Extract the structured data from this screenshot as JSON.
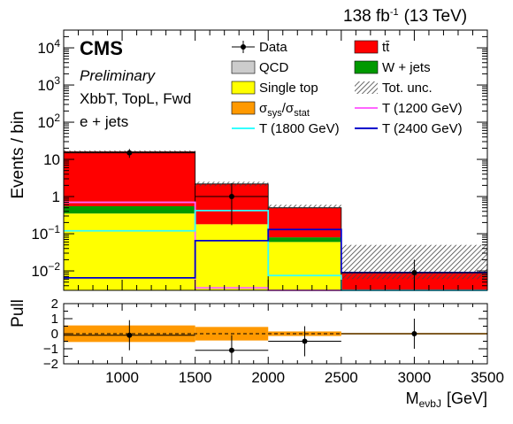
{
  "header": {
    "lumi": "138 fb",
    "lumi_sup": "-1",
    "energy": "(13 TeV)"
  },
  "labels": {
    "experiment": "CMS",
    "status": "Preliminary",
    "category": "XbbT, TopL, Fwd",
    "channel": "e + jets"
  },
  "legend": [
    {
      "key": "data",
      "label": "Data",
      "kind": "point",
      "color": "#000000"
    },
    {
      "key": "ttbar",
      "label": "tt̄",
      "kind": "box",
      "color": "#ff0000"
    },
    {
      "key": "qcd",
      "label": "QCD",
      "kind": "box",
      "color": "#cccccc"
    },
    {
      "key": "wjets",
      "label": "W + jets",
      "kind": "box",
      "color": "#009900"
    },
    {
      "key": "singletop",
      "label": "Single top",
      "kind": "box",
      "color": "#ffff00"
    },
    {
      "key": "totunc",
      "label": "Tot. unc.",
      "kind": "hatch",
      "color": "#555555"
    },
    {
      "key": "sysstat",
      "label": "σsys/σstat",
      "kind": "box",
      "color": "#ff9900"
    },
    {
      "key": "t1200",
      "label": "T (1200 GeV)",
      "kind": "line",
      "color": "#ff66ff"
    },
    {
      "key": "t1800",
      "label": "T (1800 GeV)",
      "kind": "line",
      "color": "#33ffff"
    },
    {
      "key": "t2400",
      "label": "T (2400 GeV)",
      "kind": "line",
      "color": "#0000cc"
    }
  ],
  "chart_data": {
    "type": "bar",
    "stacked": true,
    "log_y": true,
    "ylabel": "Events / bin",
    "xlabel": "M",
    "xlabel_sub": "eνbJ",
    "xlabel_unit": "[GeV]",
    "xlim": [
      600,
      3500
    ],
    "ylim": [
      0.003,
      30000
    ],
    "bin_edges": [
      600,
      1500,
      2000,
      2500,
      3500
    ],
    "x_ticks": [
      1000,
      1500,
      2000,
      2500,
      3000,
      3500
    ],
    "y_ticks": [
      {
        "value": 10000,
        "base": "10",
        "exp": "4"
      },
      {
        "value": 1000,
        "base": "10",
        "exp": "3"
      },
      {
        "value": 100,
        "base": "10",
        "exp": "2"
      },
      {
        "value": 10,
        "base": "10",
        "exp": ""
      },
      {
        "value": 1,
        "base": "1",
        "exp": ""
      },
      {
        "value": 0.1,
        "base": "10",
        "exp": "−1"
      },
      {
        "value": 0.01,
        "base": "10",
        "exp": "−2"
      }
    ],
    "stack": [
      {
        "name": "Single top",
        "color": "#ffff00",
        "values": [
          0.35,
          0.18,
          0.06,
          0.0
        ]
      },
      {
        "name": "W + jets",
        "color": "#009900",
        "values": [
          0.2,
          0.0,
          0.02,
          0.0
        ]
      },
      {
        "name": "QCD",
        "color": "#cccccc",
        "values": [
          0.0,
          0.0,
          0.0,
          0.0
        ]
      },
      {
        "name": "tt̄",
        "color": "#ff0000",
        "values": [
          15.5,
          2.0,
          0.42,
          0.009
        ]
      }
    ],
    "total_uncertainty": {
      "low": [
        14.8,
        1.9,
        0.47,
        0.006
      ],
      "high": [
        17.3,
        2.5,
        0.6,
        0.05
      ]
    },
    "signals": [
      {
        "name": "T (1200 GeV)",
        "color": "#ff66ff",
        "values": [
          0.7,
          0.0035,
          0.0025,
          0.002
        ]
      },
      {
        "name": "T (1800 GeV)",
        "color": "#33ffff",
        "values": [
          0.12,
          0.42,
          0.0075,
          0.002
        ]
      },
      {
        "name": "T (2400 GeV)",
        "color": "#0000cc",
        "values": [
          0.0065,
          0.065,
          0.13,
          0.009
        ]
      }
    ],
    "data": [
      {
        "x": 1050,
        "y": 15,
        "ylo": 11,
        "yhi": 19
      },
      {
        "x": 1750,
        "y": 1,
        "ylo": 0.17,
        "yhi": 2.3
      },
      {
        "x": 3000,
        "y": 0.009,
        "ylo": 0.001,
        "yhi": 0.02
      }
    ],
    "pull": {
      "ylabel": "Pull",
      "ylim": [
        -2,
        2
      ],
      "y_ticks": [
        "2",
        "1",
        "0",
        "−1",
        "−2"
      ],
      "band_halfwidth": [
        0.55,
        0.45,
        0.15,
        0.05
      ],
      "points": [
        {
          "x": 1050,
          "y": -0.1,
          "xerr": [
            600,
            1500
          ],
          "yerr": 1.0
        },
        {
          "x": 1750,
          "y": -1.1,
          "xerr": [
            1500,
            2000
          ],
          "yerr": 1.0
        },
        {
          "x": 2250,
          "y": -0.5,
          "xerr": [
            2000,
            2500
          ],
          "yerr": 1.0
        },
        {
          "x": 3000,
          "y": 0.0,
          "xerr": [
            2500,
            3500
          ],
          "yerr": 1.0
        }
      ]
    }
  }
}
